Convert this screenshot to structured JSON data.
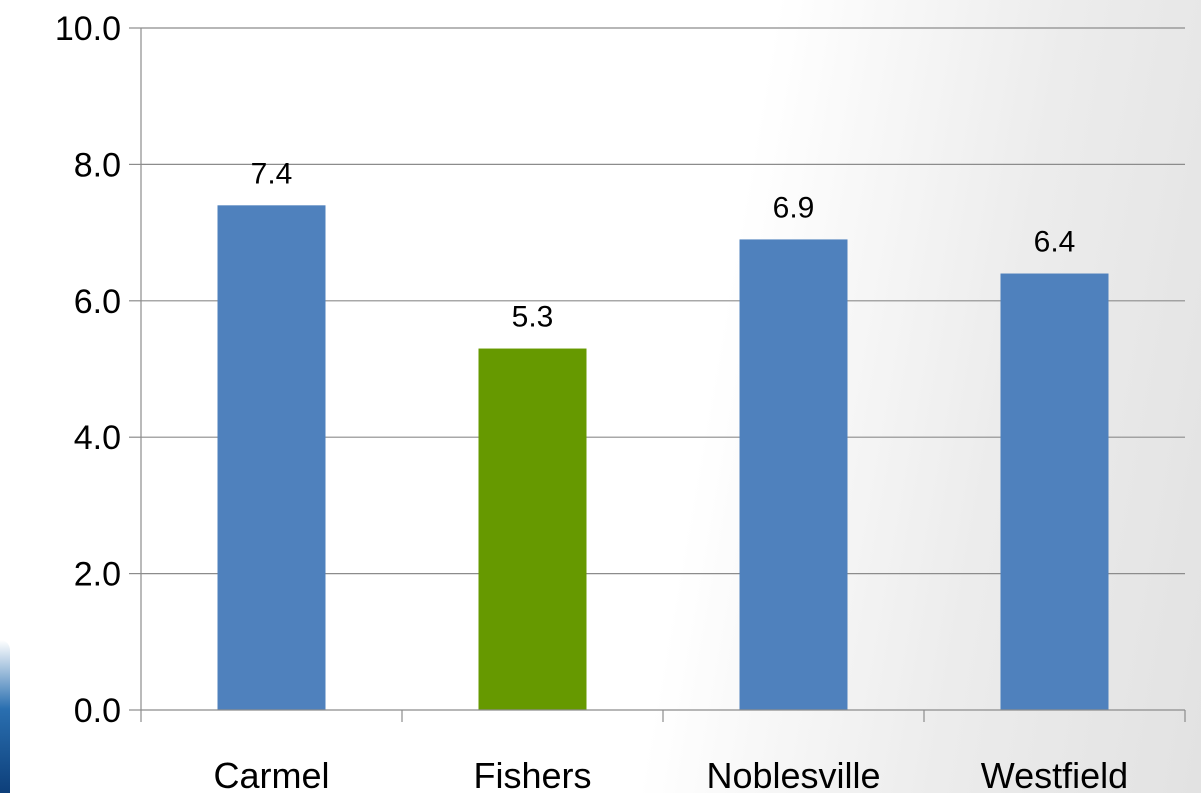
{
  "chart_data": {
    "type": "bar",
    "title": "",
    "xlabel": "",
    "ylabel": "",
    "categories": [
      "Carmel",
      "Fishers",
      "Noblesville",
      "Westfield"
    ],
    "values": [
      7.4,
      5.3,
      6.9,
      6.4
    ],
    "value_labels": [
      "7.4",
      "5.3",
      "6.9",
      "6.4"
    ],
    "bar_colors": [
      "#4f81bd",
      "#669900",
      "#4f81bd",
      "#4f81bd"
    ],
    "ylim": [
      0,
      10
    ],
    "yticks": [
      0,
      2,
      4,
      6,
      8,
      10
    ],
    "ytick_labels": [
      "0.0",
      "2.0",
      "4.0",
      "6.0",
      "8.0",
      "10.0"
    ],
    "grid": true,
    "legend": "none"
  }
}
